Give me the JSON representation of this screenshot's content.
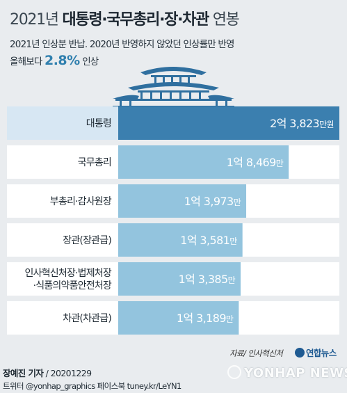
{
  "header": {
    "title_year": "2021년",
    "title_main": "대통령·국무총리·장·차관",
    "title_tail": "연봉",
    "subtitle": "2021년 인상분 반납. 2020년 반영하지 않았던 인상률만 반영",
    "rate_prefix": "올해보다",
    "rate_value": "2.8%",
    "rate_suffix": "인상"
  },
  "chart_data": {
    "type": "bar",
    "orientation": "horizontal",
    "categories": [
      "대통령",
      "국무총리",
      "부총리·감사원장",
      "장관(장관급)",
      "인사혁신처장·법제처장·식품의약품안전처장",
      "차관(차관급)"
    ],
    "category_lines": [
      [
        "대통령"
      ],
      [
        "국무총리"
      ],
      [
        "부총리·감사원장"
      ],
      [
        "장관(장관급)"
      ],
      [
        "인사혁신처장·법제처장",
        "·식품의약품안전처장"
      ],
      [
        "차관(차관급)"
      ]
    ],
    "values": [
      238230000,
      184690000,
      139730000,
      135810000,
      133850000,
      131890000
    ],
    "value_labels": [
      "2억 3,823",
      "1억 8,469",
      "1억 3,973",
      "1억 3,581",
      "1억 3,385",
      "1억 3,189"
    ],
    "unit_labels": [
      "만원",
      "만",
      "만",
      "만",
      "만",
      "만"
    ],
    "colors": {
      "highlight_bar": "#3b7faf",
      "bar": "#93c4de",
      "label_panel": "#ffffff",
      "highlight_panel": "#d7e7f3"
    }
  },
  "footer": {
    "source": "자료/ 인사혁신처",
    "agency": "연합뉴스",
    "reporter": "장예진 기자",
    "date": "20201229",
    "social": "트위터 @yonhap_graphics  페이스북 tuney.kr/LeYN1",
    "watermark": "YONHAP NEWS"
  }
}
